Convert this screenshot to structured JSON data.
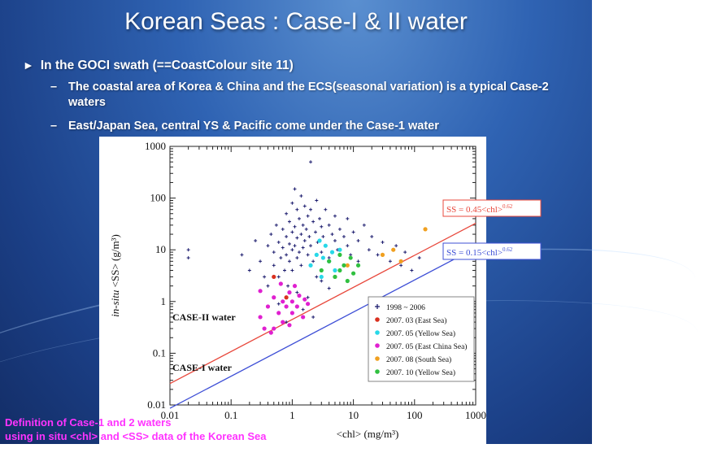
{
  "slide": {
    "title": "Korean Seas : Case-I & II water",
    "bullet_mark": "►",
    "bullet": "In the GOCI swath (==CoastColour site 11)",
    "subbullets": [
      {
        "dash": "–",
        "text": "The coastal area of Korea & China and the ECS(seasonal variation) is a typical Case-2 waters"
      },
      {
        "dash": "–",
        "text": "East/Japan Sea, central YS & Pacific come under the Case-1 water"
      }
    ],
    "caption_line1": "Definition of Case-1 and 2 waters",
    "caption_line2": "using in situ <chl> and <SS> data of the Korean Sea"
  },
  "colors": {
    "background": "#2f63b3",
    "title": "#ffffff",
    "caption": "#ff33ff",
    "case2_line": "#e8483c",
    "case1_line": "#3e4fd6"
  },
  "chart_data": {
    "type": "scatter",
    "xscale": "log",
    "yscale": "log",
    "xlim": [
      0.01,
      1000
    ],
    "ylim": [
      0.01,
      1000
    ],
    "xticks": [
      "0.01",
      "0.1",
      "1",
      "10",
      "100",
      "1000"
    ],
    "yticks": [
      "0.01",
      "0.1",
      "1",
      "10",
      "100",
      "1000"
    ],
    "xlabel": "<chl> (mg/m³)",
    "ylabel_italic": "in-situ",
    "ylabel": "<SS> (g/m³)",
    "legend_position": "lower-right",
    "lines": [
      {
        "name": "SS = 0.45<chl>",
        "exponent": "0.62",
        "coef": 0.45,
        "power": 0.62,
        "color": "#e8483c"
      },
      {
        "name": "SS = 0.15<chl>",
        "exponent": "0.62",
        "coef": 0.15,
        "power": 0.62,
        "color": "#3e4fd6"
      }
    ],
    "region_labels": [
      "CASE-II water",
      "CASE-I water"
    ],
    "series": [
      {
        "name": "1998 ~ 2006",
        "color": "#1c1c6e",
        "marker": "plus",
        "points": [
          [
            0.02,
            10
          ],
          [
            0.02,
            7
          ],
          [
            0.15,
            8
          ],
          [
            0.2,
            4
          ],
          [
            0.25,
            15
          ],
          [
            0.3,
            6
          ],
          [
            0.35,
            3
          ],
          [
            0.4,
            12
          ],
          [
            0.4,
            2
          ],
          [
            0.45,
            20
          ],
          [
            0.5,
            9
          ],
          [
            0.5,
            5
          ],
          [
            0.55,
            30
          ],
          [
            0.6,
            14
          ],
          [
            0.6,
            3
          ],
          [
            0.65,
            7
          ],
          [
            0.7,
            25
          ],
          [
            0.7,
            11
          ],
          [
            0.75,
            4
          ],
          [
            0.8,
            50
          ],
          [
            0.8,
            18
          ],
          [
            0.8,
            8
          ],
          [
            0.85,
            2
          ],
          [
            0.9,
            35
          ],
          [
            0.9,
            13
          ],
          [
            0.9,
            6
          ],
          [
            1,
            80
          ],
          [
            1,
            22
          ],
          [
            1,
            10
          ],
          [
            1,
            4
          ],
          [
            1.1,
            150
          ],
          [
            1.1,
            28
          ],
          [
            1.1,
            12
          ],
          [
            1.2,
            60
          ],
          [
            1.2,
            17
          ],
          [
            1.2,
            7
          ],
          [
            1.3,
            40
          ],
          [
            1.3,
            9
          ],
          [
            1.4,
            110
          ],
          [
            1.4,
            20
          ],
          [
            1.4,
            5
          ],
          [
            1.5,
            30
          ],
          [
            1.5,
            11
          ],
          [
            1.6,
            70
          ],
          [
            1.6,
            15
          ],
          [
            1.7,
            25
          ],
          [
            1.8,
            45
          ],
          [
            1.8,
            8
          ],
          [
            1.9,
            18
          ],
          [
            2,
            500
          ],
          [
            2,
            60
          ],
          [
            2,
            12
          ],
          [
            2.2,
            35
          ],
          [
            2.2,
            6
          ],
          [
            2.4,
            22
          ],
          [
            2.5,
            90
          ],
          [
            2.6,
            14
          ],
          [
            2.8,
            40
          ],
          [
            3,
            28
          ],
          [
            3,
            9
          ],
          [
            3.2,
            18
          ],
          [
            3.5,
            60
          ],
          [
            3.5,
            12
          ],
          [
            4,
            30
          ],
          [
            4,
            7
          ],
          [
            4.5,
            20
          ],
          [
            5,
            45
          ],
          [
            5,
            15
          ],
          [
            5.5,
            10
          ],
          [
            6,
            25
          ],
          [
            7,
            18
          ],
          [
            8,
            40
          ],
          [
            8,
            12
          ],
          [
            9,
            8
          ],
          [
            10,
            22
          ],
          [
            12,
            15
          ],
          [
            12,
            6
          ],
          [
            15,
            30
          ],
          [
            18,
            10
          ],
          [
            20,
            18
          ],
          [
            25,
            8
          ],
          [
            30,
            14
          ],
          [
            40,
            6
          ],
          [
            50,
            12
          ],
          [
            60,
            5
          ],
          [
            70,
            9
          ],
          [
            90,
            4
          ],
          [
            120,
            7
          ],
          [
            1.5,
            0.7
          ],
          [
            1.8,
            1.2
          ],
          [
            2.2,
            0.5
          ],
          [
            0.6,
            0.9
          ],
          [
            0.8,
            0.4
          ],
          [
            1.2,
            1.5
          ],
          [
            3,
            2.5
          ],
          [
            4,
            1.8
          ],
          [
            2.5,
            3
          ],
          [
            6,
            4
          ]
        ]
      },
      {
        "name": "2007. 03 (East Sea)",
        "color": "#d9301f",
        "marker": "dot",
        "points": [
          [
            0.5,
            3
          ],
          [
            0.8,
            1.2
          ]
        ]
      },
      {
        "name": "2007. 05 (Yellow Sea)",
        "color": "#28d8e8",
        "marker": "dot",
        "points": [
          [
            2,
            5
          ],
          [
            2.5,
            8
          ],
          [
            3,
            3
          ],
          [
            3.5,
            12
          ],
          [
            4,
            6
          ],
          [
            4.5,
            9
          ],
          [
            5,
            4
          ],
          [
            2.8,
            15
          ],
          [
            3.2,
            7
          ],
          [
            6,
            10
          ]
        ]
      },
      {
        "name": "2007. 05 (East China Sea)",
        "color": "#e020d0",
        "marker": "dot",
        "points": [
          [
            0.3,
            0.5
          ],
          [
            0.4,
            0.8
          ],
          [
            0.5,
            0.3
          ],
          [
            0.5,
            1.2
          ],
          [
            0.6,
            0.6
          ],
          [
            0.7,
            1
          ],
          [
            0.7,
            0.4
          ],
          [
            0.8,
            0.8
          ],
          [
            0.9,
            1.5
          ],
          [
            1,
            0.6
          ],
          [
            1,
            1
          ],
          [
            1.1,
            2
          ],
          [
            1.2,
            0.8
          ],
          [
            1.3,
            1.3
          ],
          [
            1.5,
            0.5
          ],
          [
            1.6,
            1.1
          ],
          [
            0.45,
            0.25
          ],
          [
            0.9,
            0.35
          ],
          [
            1.8,
            0.9
          ],
          [
            0.3,
            1.6
          ],
          [
            0.35,
            0.3
          ],
          [
            0.65,
            2.2
          ]
        ]
      },
      {
        "name": "2007. 08 (South Sea)",
        "color": "#f0a020",
        "marker": "dot",
        "points": [
          [
            5,
            3
          ],
          [
            8,
            5
          ],
          [
            30,
            8
          ],
          [
            45,
            10
          ],
          [
            60,
            6
          ],
          [
            150,
            25
          ]
        ]
      },
      {
        "name": "2007. 10 (Yellow Sea)",
        "color": "#30c040",
        "marker": "dot",
        "points": [
          [
            3,
            4
          ],
          [
            4,
            6
          ],
          [
            5,
            3
          ],
          [
            6,
            8
          ],
          [
            7,
            5
          ],
          [
            8,
            2.5
          ],
          [
            10,
            3.5
          ],
          [
            12,
            5
          ],
          [
            6,
            4
          ],
          [
            9,
            7
          ]
        ]
      }
    ]
  }
}
